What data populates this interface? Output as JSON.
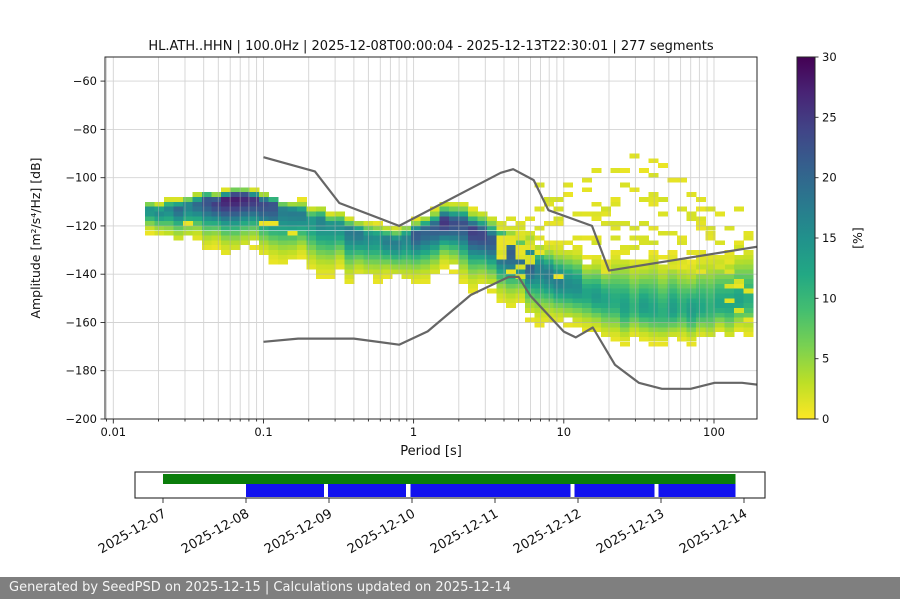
{
  "header": {
    "title": "HL.ATH..HHN | 100.0Hz | 2025-12-08T00:00:04 - 2025-12-13T22:30:01 | 277 segments"
  },
  "footer": {
    "text": "Generated by SeedPSD on 2025-12-15 | Calculations updated on 2025-12-14",
    "bg": "#7f7f7f",
    "fg": "#f5f5f5"
  },
  "chart_data": {
    "type": "heatmap",
    "title": "HL.ATH..HHN | 100.0Hz | 2025-12-08T00:00:04 - 2025-12-13T22:30:01 | 277 segments",
    "xlabel": "Period [s]",
    "ylabel": "Amplitude [m²/s⁴/Hz] [dB]",
    "x_scale": "log",
    "xlim": [
      0.0088,
      193.5
    ],
    "ylim": [
      -200,
      -50
    ],
    "grid": {
      "color": "#b0b0b0",
      "opacity": 0.55
    },
    "x_ticks": {
      "values": [
        0.01,
        0.1,
        1,
        10,
        100
      ],
      "labels": [
        "0.01",
        "0.1",
        "1",
        "10",
        "100"
      ]
    },
    "y_ticks": {
      "values": [
        -60,
        -80,
        -100,
        -120,
        -140,
        -160,
        -180,
        -200
      ],
      "labels": [
        "−60",
        "−80",
        "−100",
        "−120",
        "−140",
        "−160",
        "−180",
        "−200"
      ]
    },
    "colorbar": {
      "label": "[%]",
      "min": 0,
      "max": 30,
      "ticks": [
        0,
        5,
        10,
        15,
        20,
        25,
        30
      ],
      "tick_labels": [
        "0",
        "5",
        "10",
        "15",
        "20",
        "25",
        "30"
      ],
      "colormap": "viridis_r"
    },
    "viridis_rgb": [
      [
        68,
        1,
        84
      ],
      [
        72,
        36,
        117
      ],
      [
        65,
        68,
        135
      ],
      [
        53,
        95,
        141
      ],
      [
        42,
        120,
        142
      ],
      [
        33,
        145,
        140
      ],
      [
        34,
        168,
        132
      ],
      [
        68,
        190,
        112
      ],
      [
        122,
        209,
        81
      ],
      [
        189,
        223,
        38
      ],
      [
        253,
        231,
        37
      ]
    ],
    "ppsd_band": {
      "note": "probability band of PPSD histogram; spine rows = [log10(period s), mode dB, sigma up dB, sigma down dB, max probability %]",
      "bins": 64,
      "logT_range": [
        -1.79,
        2.26
      ],
      "db_cell": 2,
      "min_prob_drawn": 0.8,
      "spine": [
        [
          -1.79,
          -114.0,
          1.8,
          4.5,
          16
        ],
        [
          -1.6,
          -112.5,
          1.8,
          5.5,
          17
        ],
        [
          -1.45,
          -111.0,
          1.8,
          7.0,
          19
        ],
        [
          -1.3,
          -109.0,
          1.8,
          8.0,
          23
        ],
        [
          -1.13,
          -107.8,
          1.6,
          8.8,
          26
        ],
        [
          -1.0,
          -110.5,
          1.8,
          8.8,
          22
        ],
        [
          -0.85,
          -113.5,
          2.0,
          8.8,
          18
        ],
        [
          -0.7,
          -116.5,
          2.2,
          8.8,
          16
        ],
        [
          -0.55,
          -119.0,
          2.5,
          8.5,
          16
        ],
        [
          -0.4,
          -122.0,
          2.5,
          8.0,
          16
        ],
        [
          -0.25,
          -125.0,
          2.5,
          7.5,
          17
        ],
        [
          -0.1,
          -127.0,
          2.5,
          7.0,
          18
        ],
        [
          0.05,
          -122.5,
          2.8,
          8.0,
          19
        ],
        [
          0.2,
          -118.5,
          3.0,
          8.0,
          22
        ],
        [
          0.33,
          -118.5,
          3.5,
          9.0,
          24
        ],
        [
          0.5,
          -125.0,
          4.0,
          9.5,
          24
        ],
        [
          0.65,
          -131.0,
          4.5,
          9.0,
          22
        ],
        [
          0.8,
          -136.0,
          5.0,
          8.5,
          20
        ],
        [
          0.95,
          -141.5,
          6.0,
          8.0,
          16
        ],
        [
          1.1,
          -146.5,
          7.0,
          7.0,
          13
        ],
        [
          1.25,
          -150.5,
          8.0,
          6.5,
          12
        ],
        [
          1.4,
          -153.0,
          9.0,
          6.0,
          12
        ],
        [
          1.55,
          -154.5,
          9.5,
          6.0,
          12
        ],
        [
          1.7,
          -155.5,
          9.5,
          6.0,
          12
        ],
        [
          1.85,
          -154.5,
          9.5,
          6.0,
          12
        ],
        [
          2.0,
          -153.0,
          9.0,
          6.0,
          12
        ],
        [
          2.15,
          -151.5,
          9.0,
          6.0,
          13
        ],
        [
          2.26,
          -150.5,
          9.0,
          6.0,
          13
        ]
      ]
    },
    "event_arcs": {
      "note": "sparse low-probability (~1%) yellow arcs from transients; rows = [log10(peak period), peak dB, curvature dB/decade^2, logT min, logT max, dash density]",
      "arcs": [
        [
          1.33,
          -89,
          58,
          0.62,
          2.26,
          0.45
        ],
        [
          1.4,
          -96,
          52,
          0.55,
          2.26,
          0.5
        ],
        [
          1.3,
          -103,
          48,
          0.5,
          2.26,
          0.5
        ],
        [
          1.45,
          -109,
          44,
          0.5,
          2.26,
          0.55
        ],
        [
          1.22,
          -114,
          42,
          0.45,
          2.26,
          0.55
        ],
        [
          1.38,
          -119,
          40,
          0.5,
          2.26,
          0.6
        ],
        [
          1.27,
          -124,
          38,
          0.45,
          2.26,
          0.6
        ]
      ]
    },
    "diffuse_scatter": {
      "logT_min": 0.5,
      "logT_max": 2.26,
      "center_db": -127,
      "spread_db": 13,
      "density": 0.16,
      "db_min": -145,
      "db_max": -99
    },
    "hf_streaks": {
      "logT_max": -0.45,
      "density": 0.22
    },
    "noise_models": {
      "color": "#666666",
      "width": 2.2,
      "nhnm": [
        [
          0.1,
          -91.5
        ],
        [
          0.22,
          -97.4
        ],
        [
          0.32,
          -110.5
        ],
        [
          0.8,
          -120.0
        ],
        [
          3.8,
          -98.0
        ],
        [
          4.6,
          -96.5
        ],
        [
          6.3,
          -101.0
        ],
        [
          7.9,
          -113.5
        ],
        [
          15.4,
          -120.0
        ],
        [
          20.0,
          -138.5
        ],
        [
          354.8,
          -126.0
        ]
      ],
      "nlnm": [
        [
          0.1,
          -168.0
        ],
        [
          0.17,
          -166.7
        ],
        [
          0.4,
          -166.7
        ],
        [
          0.8,
          -169.2
        ],
        [
          1.24,
          -163.7
        ],
        [
          2.4,
          -148.6
        ],
        [
          4.3,
          -141.1
        ],
        [
          5.0,
          -141.1
        ],
        [
          6.0,
          -149.0
        ],
        [
          10.0,
          -163.8
        ],
        [
          12.0,
          -166.2
        ],
        [
          15.6,
          -162.1
        ],
        [
          21.9,
          -177.5
        ],
        [
          31.6,
          -185.0
        ],
        [
          45.0,
          -187.5
        ],
        [
          70.0,
          -187.5
        ],
        [
          101.0,
          -185.0
        ],
        [
          154.0,
          -185.0
        ],
        [
          328.0,
          -187.5
        ]
      ]
    }
  },
  "timeline": {
    "xlim_days": [
      -0.337,
      7.253
    ],
    "tick_days": [
      0,
      1,
      2,
      3,
      4,
      5,
      6,
      7
    ],
    "tick_labels": [
      "2025-12-07",
      "2025-12-08",
      "2025-12-09",
      "2025-12-10",
      "2025-12-11",
      "2025-12-12",
      "2025-12-13",
      "2025-12-14"
    ],
    "green_color": "#0a7d0a",
    "blue_color": "#1212ee",
    "green_segments": [
      [
        0.0,
        6.9
      ]
    ],
    "blue_segments": [
      [
        1.0,
        1.94
      ],
      [
        1.99,
        2.93
      ],
      [
        2.98,
        4.91
      ],
      [
        4.96,
        5.92
      ],
      [
        5.97,
        6.9
      ]
    ]
  }
}
